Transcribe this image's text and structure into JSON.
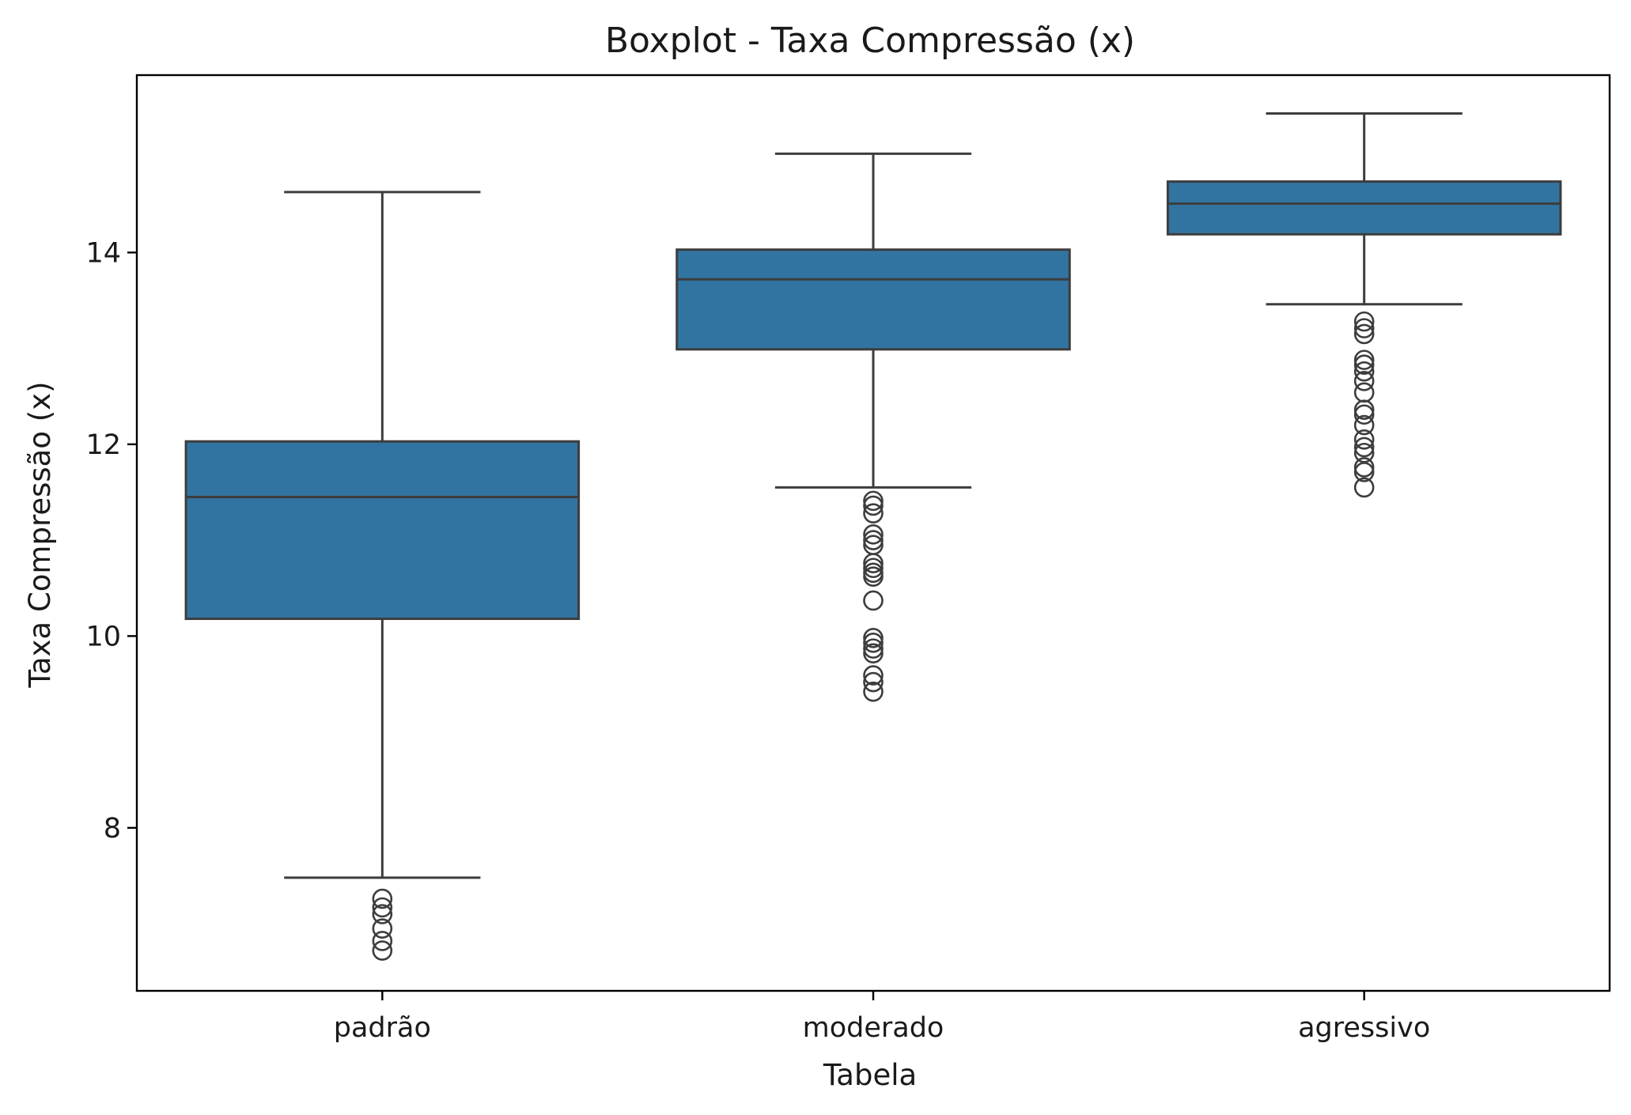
{
  "chart_data": {
    "type": "box",
    "title": "Boxplot - Taxa Compressão (x)",
    "xlabel": "Tabela",
    "ylabel": "Taxa Compressão (x)",
    "ylim": [
      6.3,
      15.85
    ],
    "yticks": [
      8,
      10,
      12,
      14
    ],
    "grid": false,
    "legend": "none",
    "box_color": "#3274a1",
    "line_color": "#3d3d3d",
    "categories": [
      "padrão",
      "moderado",
      "agressivo"
    ],
    "boxes": [
      {
        "category": "padrão",
        "whisker_low": 7.48,
        "q1": 10.18,
        "median": 11.45,
        "q3": 12.03,
        "whisker_high": 14.63,
        "outliers": [
          7.26,
          7.17,
          7.1,
          6.95,
          6.82,
          6.72
        ]
      },
      {
        "category": "moderado",
        "whisker_low": 11.55,
        "q1": 12.99,
        "median": 13.72,
        "q3": 14.03,
        "whisker_high": 15.03,
        "outliers": [
          11.41,
          11.36,
          11.28,
          11.06,
          11.0,
          10.95,
          10.76,
          10.71,
          10.66,
          10.62,
          10.37,
          9.98,
          9.93,
          9.87,
          9.82,
          9.59,
          9.52,
          9.42
        ]
      },
      {
        "category": "agressivo",
        "whisker_low": 13.46,
        "q1": 14.19,
        "median": 14.51,
        "q3": 14.74,
        "whisker_high": 15.45,
        "outliers": [
          13.28,
          13.21,
          13.15,
          12.88,
          12.83,
          12.76,
          12.66,
          12.54,
          12.36,
          12.31,
          12.2,
          12.05,
          11.97,
          11.91,
          11.76,
          11.71,
          11.55
        ]
      }
    ]
  }
}
